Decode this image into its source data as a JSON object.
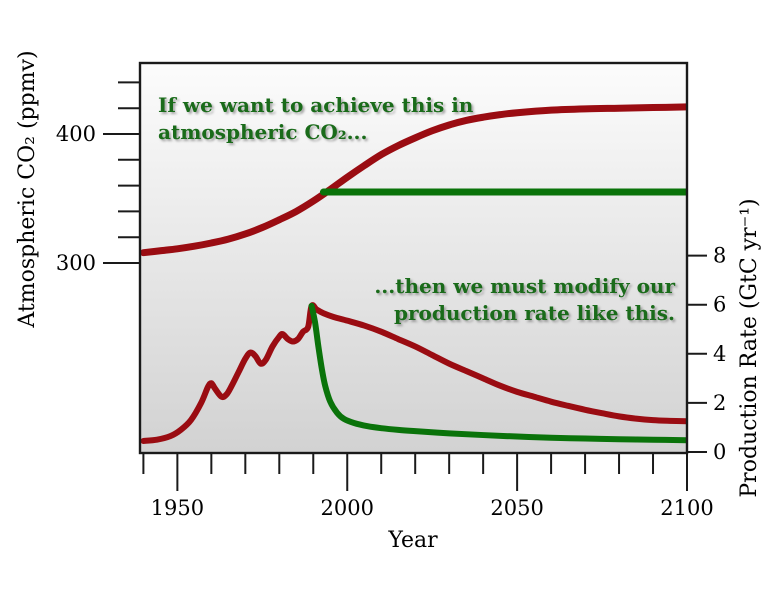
{
  "figure": {
    "background": "#ffffff",
    "colors": {
      "red_line": "#9a0c12",
      "green_line": "#0a730a",
      "annotation_green": "#1a6b1a",
      "frame": "#1a1a1a",
      "plot_gradient_top": "#fcfcfc",
      "plot_gradient_bottom": "#d2d2d2"
    },
    "annotations": {
      "co2_note_line1": "If we want to achieve this in",
      "co2_note_line2": "atmospheric CO₂...",
      "prod_note_line1": "...then we must modify our",
      "prod_note_line2": "production rate like this."
    }
  },
  "chart_data": {
    "type": "line",
    "title": "",
    "xlabel": "Year",
    "x_range": [
      1939,
      2100
    ],
    "grid": "off",
    "legend": "none",
    "left_axis": {
      "label": "Atmospheric CO₂ (ppmv)",
      "units": "ppmv",
      "labeled_ticks": [
        300,
        400
      ],
      "ticks": [
        {
          "value": 440,
          "label": ""
        },
        {
          "value": 420,
          "label": ""
        },
        {
          "value": 400,
          "label": "400"
        },
        {
          "value": 380,
          "label": ""
        },
        {
          "value": 360,
          "label": ""
        },
        {
          "value": 340,
          "label": ""
        },
        {
          "value": 320,
          "label": ""
        },
        {
          "value": 300,
          "label": "300"
        }
      ]
    },
    "right_axis": {
      "label": "Production Rate (GtC yr⁻¹)",
      "units": "GtC/yr",
      "range": [
        0,
        8
      ],
      "ticks": [
        {
          "value": 0,
          "label": "0"
        },
        {
          "value": 2,
          "label": "2"
        },
        {
          "value": 4,
          "label": "4"
        },
        {
          "value": 6,
          "label": "6"
        },
        {
          "value": 8,
          "label": "8"
        }
      ]
    },
    "x_ticks": [
      {
        "year": 1940,
        "label": "",
        "major": false
      },
      {
        "year": 1950,
        "label": "1950",
        "major": true
      },
      {
        "year": 1960,
        "label": "",
        "major": false
      },
      {
        "year": 1970,
        "label": "",
        "major": false
      },
      {
        "year": 1980,
        "label": "",
        "major": false
      },
      {
        "year": 1990,
        "label": "",
        "major": false
      },
      {
        "year": 2000,
        "label": "2000",
        "major": true
      },
      {
        "year": 2010,
        "label": "",
        "major": false
      },
      {
        "year": 2020,
        "label": "",
        "major": false
      },
      {
        "year": 2030,
        "label": "",
        "major": false
      },
      {
        "year": 2040,
        "label": "",
        "major": false
      },
      {
        "year": 2050,
        "label": "2050",
        "major": true
      },
      {
        "year": 2060,
        "label": "",
        "major": false
      },
      {
        "year": 2070,
        "label": "",
        "major": false
      },
      {
        "year": 2080,
        "label": "",
        "major": false
      },
      {
        "year": 2090,
        "label": "",
        "major": false
      },
      {
        "year": 2100,
        "label": "2100",
        "major": true
      }
    ],
    "series": [
      {
        "name": "production_rate_business_as_usual",
        "axis": "right",
        "color": "#9a0c12",
        "width": 6,
        "x": [
          1940,
          1944,
          1948,
          1951,
          1954,
          1957,
          1959,
          1960,
          1961,
          1963,
          1964.5,
          1966,
          1968,
          1970,
          1971.5,
          1973,
          1974.5,
          1976,
          1978,
          1980,
          1981,
          1982.5,
          1984,
          1985.5,
          1987,
          1988.5,
          1989.5,
          1991,
          1993,
          1996,
          2000,
          2005,
          2010,
          2015,
          2020,
          2025,
          2030,
          2035,
          2040,
          2045,
          2050,
          2055,
          2060,
          2065,
          2070,
          2075,
          2080,
          2085,
          2090,
          2095,
          2100
        ],
        "y": [
          0.45,
          0.5,
          0.65,
          0.9,
          1.3,
          2.0,
          2.65,
          2.8,
          2.6,
          2.25,
          2.35,
          2.7,
          3.25,
          3.8,
          4.05,
          3.9,
          3.6,
          3.75,
          4.3,
          4.7,
          4.8,
          4.6,
          4.5,
          4.6,
          4.9,
          5.1,
          5.95,
          5.8,
          5.65,
          5.5,
          5.35,
          5.15,
          4.9,
          4.6,
          4.3,
          3.95,
          3.6,
          3.3,
          3.0,
          2.7,
          2.45,
          2.25,
          2.05,
          1.88,
          1.72,
          1.58,
          1.45,
          1.36,
          1.3,
          1.27,
          1.25
        ]
      },
      {
        "name": "production_rate_modified",
        "axis": "right",
        "color": "#0a730a",
        "width": 6,
        "x": [
          1989.5,
          1990.5,
          1991.5,
          1992.5,
          1993.5,
          1995,
          1997,
          1999,
          2002,
          2006,
          2010,
          2015,
          2020,
          2030,
          2040,
          2050,
          2060,
          2070,
          2080,
          2090,
          2100
        ],
        "y": [
          5.95,
          5.3,
          4.3,
          3.4,
          2.7,
          2.05,
          1.6,
          1.35,
          1.18,
          1.05,
          0.97,
          0.9,
          0.85,
          0.76,
          0.69,
          0.63,
          0.58,
          0.55,
          0.52,
          0.5,
          0.48
        ]
      },
      {
        "name": "atmospheric_co2_projected",
        "axis": "left",
        "color": "#9a0c12",
        "width": 7,
        "x": [
          1940,
          1945,
          1950,
          1955,
          1960,
          1965,
          1970,
          1975,
          1980,
          1985,
          1990,
          1995,
          2000,
          2005,
          2010,
          2015,
          2020,
          2025,
          2030,
          2035,
          2040,
          2045,
          2050,
          2060,
          2070,
          2080,
          2090,
          2100
        ],
        "y": [
          308,
          309.5,
          311,
          313,
          315.5,
          318.5,
          322.5,
          327.5,
          333.5,
          340,
          348,
          357,
          366.5,
          375.5,
          384,
          391,
          397,
          402.5,
          407,
          410.5,
          413,
          415,
          416.5,
          418.5,
          419.5,
          420,
          420.5,
          421
        ]
      },
      {
        "name": "atmospheric_co2_stabilized_target",
        "axis": "left",
        "color": "#0a730a",
        "width": 7,
        "x": [
          1993,
          2100
        ],
        "y": [
          355,
          355
        ]
      }
    ]
  }
}
